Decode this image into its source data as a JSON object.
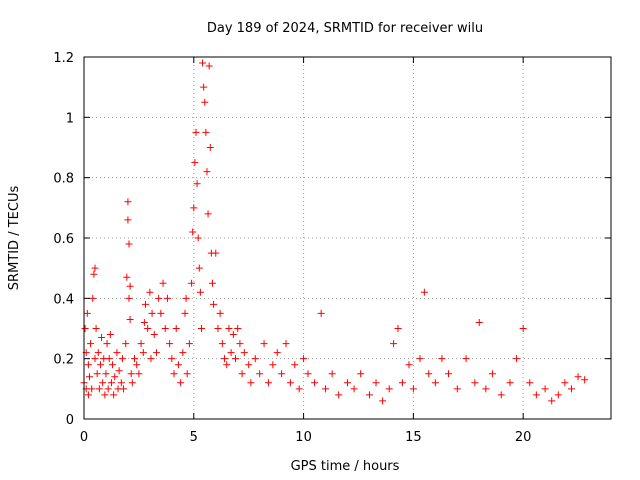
{
  "chart_data": {
    "type": "scatter",
    "title": "Day 189 of 2024, SRMTID for receiver wilu",
    "xlabel": "GPS time / hours",
    "ylabel": "SRMTID / TECUs",
    "xlim": [
      0,
      24
    ],
    "ylim": [
      0,
      1.2
    ],
    "xticks": [
      0,
      5,
      10,
      15,
      20
    ],
    "yticks": [
      0,
      0.2,
      0.4,
      0.6,
      0.8,
      1,
      1.2
    ],
    "xtick_labels": [
      "0",
      "5",
      "10",
      "15",
      "20"
    ],
    "ytick_labels": [
      "0",
      "0.2",
      "0.4",
      "0.6",
      "0.8",
      "1",
      "1.2"
    ],
    "grid": true,
    "marker": "+",
    "series_color": "#ff0000",
    "series": [
      {
        "name": "SRMTID",
        "points": [
          [
            0.0,
            0.12
          ],
          [
            0.05,
            0.3
          ],
          [
            0.1,
            0.1
          ],
          [
            0.1,
            0.22
          ],
          [
            0.15,
            0.35
          ],
          [
            0.2,
            0.08
          ],
          [
            0.2,
            0.18
          ],
          [
            0.25,
            0.14
          ],
          [
            0.3,
            0.25
          ],
          [
            0.35,
            0.1
          ],
          [
            0.4,
            0.4
          ],
          [
            0.45,
            0.48
          ],
          [
            0.5,
            0.5
          ],
          [
            0.5,
            0.2
          ],
          [
            0.55,
            0.3
          ],
          [
            0.6,
            0.15
          ],
          [
            0.65,
            0.22
          ],
          [
            0.7,
            0.1
          ],
          [
            0.75,
            0.18
          ],
          [
            0.8,
            0.27
          ],
          [
            0.85,
            0.12
          ],
          [
            0.9,
            0.2
          ],
          [
            0.95,
            0.08
          ],
          [
            1.0,
            0.15
          ],
          [
            1.05,
            0.25
          ],
          [
            1.1,
            0.1
          ],
          [
            1.15,
            0.2
          ],
          [
            1.2,
            0.28
          ],
          [
            1.25,
            0.12
          ],
          [
            1.3,
            0.18
          ],
          [
            1.35,
            0.08
          ],
          [
            1.4,
            0.14
          ],
          [
            1.5,
            0.22
          ],
          [
            1.55,
            0.1
          ],
          [
            1.6,
            0.16
          ],
          [
            1.7,
            0.12
          ],
          [
            1.75,
            0.2
          ],
          [
            1.8,
            0.1
          ],
          [
            1.9,
            0.25
          ],
          [
            1.95,
            0.47
          ],
          [
            2.0,
            0.72
          ],
          [
            2.0,
            0.66
          ],
          [
            2.05,
            0.58
          ],
          [
            2.05,
            0.4
          ],
          [
            2.1,
            0.33
          ],
          [
            2.1,
            0.44
          ],
          [
            2.15,
            0.15
          ],
          [
            2.2,
            0.12
          ],
          [
            2.3,
            0.2
          ],
          [
            2.4,
            0.18
          ],
          [
            2.5,
            0.15
          ],
          [
            2.6,
            0.25
          ],
          [
            2.7,
            0.22
          ],
          [
            2.75,
            0.32
          ],
          [
            2.8,
            0.38
          ],
          [
            2.9,
            0.3
          ],
          [
            3.0,
            0.42
          ],
          [
            3.05,
            0.2
          ],
          [
            3.1,
            0.35
          ],
          [
            3.2,
            0.28
          ],
          [
            3.3,
            0.22
          ],
          [
            3.4,
            0.4
          ],
          [
            3.5,
            0.35
          ],
          [
            3.6,
            0.45
          ],
          [
            3.7,
            0.3
          ],
          [
            3.8,
            0.4
          ],
          [
            3.9,
            0.25
          ],
          [
            4.0,
            0.2
          ],
          [
            4.1,
            0.15
          ],
          [
            4.2,
            0.3
          ],
          [
            4.3,
            0.18
          ],
          [
            4.4,
            0.12
          ],
          [
            4.5,
            0.22
          ],
          [
            4.6,
            0.35
          ],
          [
            4.65,
            0.4
          ],
          [
            4.7,
            0.15
          ],
          [
            4.8,
            0.25
          ],
          [
            4.9,
            0.45
          ],
          [
            4.95,
            0.62
          ],
          [
            5.0,
            0.7
          ],
          [
            5.05,
            0.85
          ],
          [
            5.1,
            0.95
          ],
          [
            5.15,
            0.78
          ],
          [
            5.2,
            0.6
          ],
          [
            5.25,
            0.5
          ],
          [
            5.3,
            0.42
          ],
          [
            5.35,
            0.3
          ],
          [
            5.4,
            1.18
          ],
          [
            5.45,
            1.1
          ],
          [
            5.5,
            1.05
          ],
          [
            5.55,
            0.95
          ],
          [
            5.6,
            0.82
          ],
          [
            5.65,
            0.68
          ],
          [
            5.7,
            1.17
          ],
          [
            5.75,
            0.9
          ],
          [
            5.8,
            0.55
          ],
          [
            5.85,
            0.45
          ],
          [
            5.9,
            0.38
          ],
          [
            6.0,
            0.55
          ],
          [
            6.1,
            0.3
          ],
          [
            6.2,
            0.35
          ],
          [
            6.3,
            0.25
          ],
          [
            6.4,
            0.2
          ],
          [
            6.5,
            0.18
          ],
          [
            6.6,
            0.3
          ],
          [
            6.7,
            0.22
          ],
          [
            6.8,
            0.28
          ],
          [
            6.9,
            0.2
          ],
          [
            7.0,
            0.3
          ],
          [
            7.1,
            0.25
          ],
          [
            7.2,
            0.15
          ],
          [
            7.3,
            0.22
          ],
          [
            7.5,
            0.18
          ],
          [
            7.6,
            0.12
          ],
          [
            7.8,
            0.2
          ],
          [
            8.0,
            0.15
          ],
          [
            8.2,
            0.25
          ],
          [
            8.4,
            0.12
          ],
          [
            8.6,
            0.18
          ],
          [
            8.8,
            0.22
          ],
          [
            9.0,
            0.15
          ],
          [
            9.2,
            0.25
          ],
          [
            9.4,
            0.12
          ],
          [
            9.6,
            0.18
          ],
          [
            9.8,
            0.1
          ],
          [
            10.0,
            0.2
          ],
          [
            10.2,
            0.15
          ],
          [
            10.5,
            0.12
          ],
          [
            10.8,
            0.35
          ],
          [
            11.0,
            0.1
          ],
          [
            11.3,
            0.15
          ],
          [
            11.6,
            0.08
          ],
          [
            12.0,
            0.12
          ],
          [
            12.3,
            0.1
          ],
          [
            12.6,
            0.15
          ],
          [
            13.0,
            0.08
          ],
          [
            13.3,
            0.12
          ],
          [
            13.6,
            0.06
          ],
          [
            13.9,
            0.1
          ],
          [
            14.1,
            0.25
          ],
          [
            14.3,
            0.3
          ],
          [
            14.5,
            0.12
          ],
          [
            14.8,
            0.18
          ],
          [
            15.0,
            0.1
          ],
          [
            15.3,
            0.2
          ],
          [
            15.5,
            0.42
          ],
          [
            15.7,
            0.15
          ],
          [
            16.0,
            0.12
          ],
          [
            16.3,
            0.2
          ],
          [
            16.6,
            0.15
          ],
          [
            17.0,
            0.1
          ],
          [
            17.4,
            0.2
          ],
          [
            17.8,
            0.12
          ],
          [
            18.0,
            0.32
          ],
          [
            18.3,
            0.1
          ],
          [
            18.6,
            0.15
          ],
          [
            19.0,
            0.08
          ],
          [
            19.4,
            0.12
          ],
          [
            19.7,
            0.2
          ],
          [
            20.0,
            0.3
          ],
          [
            20.3,
            0.12
          ],
          [
            20.6,
            0.08
          ],
          [
            21.0,
            0.1
          ],
          [
            21.3,
            0.06
          ],
          [
            21.6,
            0.08
          ],
          [
            21.9,
            0.12
          ],
          [
            22.2,
            0.1
          ],
          [
            22.5,
            0.14
          ],
          [
            22.8,
            0.13
          ]
        ]
      }
    ]
  }
}
